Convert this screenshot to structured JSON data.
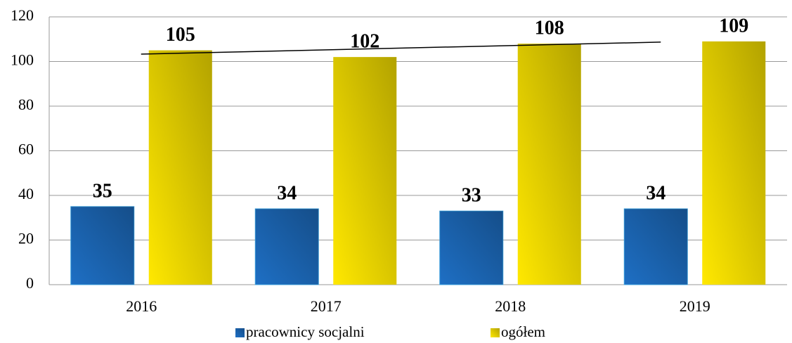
{
  "chart_data": {
    "type": "bar",
    "categories": [
      "2016",
      "2017",
      "2018",
      "2019"
    ],
    "series": [
      {
        "name": "pracownicy socjalni",
        "color": "#1e6fc4",
        "values": [
          35,
          34,
          33,
          34
        ]
      },
      {
        "name": "ogółem",
        "color": "#ffe800",
        "values": [
          105,
          102,
          108,
          109
        ],
        "trendline": "linear"
      }
    ],
    "ylim": [
      0,
      120
    ],
    "yticks": [
      0,
      20,
      40,
      60,
      80,
      100,
      120
    ],
    "grid": true,
    "legend": "bottom"
  }
}
